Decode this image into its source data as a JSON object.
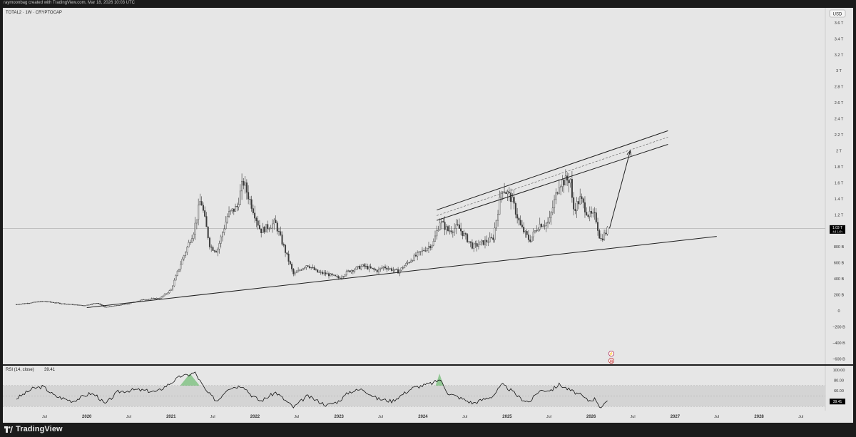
{
  "header": {
    "attribution": "raymoonbag created with TradingView.com, Mar 18, 2026 10:03 UTC"
  },
  "footer": {
    "brand": "TradingView"
  },
  "colors": {
    "background": "#e6e6e6",
    "frame": "#1b1b1b",
    "candle": "#3a3a3a",
    "trendline": "#202020",
    "rsi_line": "#111111",
    "rsi_band": "#d4d4d4",
    "rsi_overbought_fill": "#4caf50",
    "price_tag": "#000000"
  },
  "chart_data": [
    {
      "type": "candlestick",
      "title": "TOTAL2 · 1W · CRYPTOCAP",
      "symbol": "TOTAL2",
      "interval": "1W",
      "exchange": "CRYPTOCAP",
      "currency": "USD",
      "scale": "linear",
      "ylim": [
        -650000000000,
        3750000000000
      ],
      "y_ticks": [
        "3.6 T",
        "3.4 T",
        "3.2 T",
        "3 T",
        "2.8 T",
        "2.6 T",
        "2.4 T",
        "2.2 T",
        "2 T",
        "1.8 T",
        "1.6 T",
        "1.4 T",
        "1.2 T",
        "1 T",
        "800 B",
        "600 B",
        "400 B",
        "200 B",
        "0",
        "−200 B",
        "−400 B",
        "−600 B"
      ],
      "y_tick_values": [
        3600000000000.0,
        3400000000000.0,
        3200000000000.0,
        3000000000000.0,
        2800000000000.0,
        2600000000000.0,
        2400000000000.0,
        2200000000000.0,
        2000000000000.0,
        1800000000000.0,
        1600000000000.0,
        1400000000000.0,
        1200000000000.0,
        1000000000000.0,
        800000000000.0,
        600000000000.0,
        400000000000.0,
        200000000000.0,
        0,
        -200000000000.0,
        -400000000000.0,
        -600000000000.0
      ],
      "x_ticks": [
        "Jul",
        "2020",
        "Jul",
        "2021",
        "Jul",
        "2022",
        "Jul",
        "2023",
        "Jul",
        "2024",
        "Jul",
        "2025",
        "Jul",
        "2026",
        "Jul",
        "2027",
        "Jul",
        "2028",
        "Jul"
      ],
      "x_tick_dates": [
        "2019-07-01",
        "2020-01-01",
        "2020-07-01",
        "2021-01-01",
        "2021-07-01",
        "2022-01-01",
        "2022-07-01",
        "2023-01-01",
        "2023-07-01",
        "2024-01-01",
        "2024-07-01",
        "2025-01-01",
        "2025-07-01",
        "2026-01-01",
        "2026-07-01",
        "2027-01-01",
        "2027-07-01",
        "2028-01-01",
        "2028-07-01"
      ],
      "price_path": [
        [
          "2019-03-01",
          80000000000.0
        ],
        [
          "2019-06-25",
          120000000000.0
        ],
        [
          "2019-09-15",
          90000000000.0
        ],
        [
          "2019-12-20",
          65000000000.0
        ],
        [
          "2020-02-15",
          100000000000.0
        ],
        [
          "2020-03-20",
          45000000000.0
        ],
        [
          "2020-07-01",
          90000000000.0
        ],
        [
          "2020-09-01",
          140000000000.0
        ],
        [
          "2020-11-15",
          160000000000.0
        ],
        [
          "2020-12-31",
          260000000000.0
        ],
        [
          "2021-02-20",
          650000000000.0
        ],
        [
          "2021-04-10",
          1000000000000.0
        ],
        [
          "2021-05-10",
          1400000000000.0
        ],
        [
          "2021-06-20",
          800000000000.0
        ],
        [
          "2021-07-20",
          750000000000.0
        ],
        [
          "2021-09-05",
          1200000000000.0
        ],
        [
          "2021-10-15",
          1300000000000.0
        ],
        [
          "2021-11-10",
          1620000000000.0
        ],
        [
          "2021-12-20",
          1300000000000.0
        ],
        [
          "2022-01-25",
          1000000000000.0
        ],
        [
          "2022-03-30",
          1100000000000.0
        ],
        [
          "2022-05-12",
          750000000000.0
        ],
        [
          "2022-06-18",
          450000000000.0
        ],
        [
          "2022-08-15",
          580000000000.0
        ],
        [
          "2022-10-01",
          480000000000.0
        ],
        [
          "2022-11-10",
          460000000000.0
        ],
        [
          "2022-12-31",
          410000000000.0
        ],
        [
          "2023-02-15",
          500000000000.0
        ],
        [
          "2023-04-15",
          560000000000.0
        ],
        [
          "2023-06-15",
          500000000000.0
        ],
        [
          "2023-07-15",
          550000000000.0
        ],
        [
          "2023-09-15",
          490000000000.0
        ],
        [
          "2023-11-15",
          650000000000.0
        ],
        [
          "2023-12-31",
          750000000000.0
        ],
        [
          "2024-02-15",
          850000000000.0
        ],
        [
          "2024-03-15",
          1120000000000.0
        ],
        [
          "2024-04-20",
          1000000000000.0
        ],
        [
          "2024-06-01",
          1050000000000.0
        ],
        [
          "2024-08-05",
          800000000000.0
        ],
        [
          "2024-09-15",
          850000000000.0
        ],
        [
          "2024-10-31",
          900000000000.0
        ],
        [
          "2024-12-10",
          1550000000000.0
        ],
        [
          "2025-01-20",
          1400000000000.0
        ],
        [
          "2025-03-01",
          1050000000000.0
        ],
        [
          "2025-04-08",
          880000000000.0
        ],
        [
          "2025-05-20",
          1080000000000.0
        ],
        [
          "2025-07-01",
          1100000000000.0
        ],
        [
          "2025-08-15",
          1600000000000.0
        ],
        [
          "2025-10-06",
          1650000000000.0
        ],
        [
          "2025-10-12",
          1250000000000.0
        ],
        [
          "2025-11-15",
          1400000000000.0
        ],
        [
          "2025-12-20",
          1200000000000.0
        ],
        [
          "2026-01-20",
          1180000000000.0
        ],
        [
          "2026-02-10",
          880000000000.0
        ],
        [
          "2026-03-18",
          1030000000000.0
        ]
      ],
      "current_price": {
        "label": "1.03 T",
        "value": 1030000000000.0,
        "countdown": "4d 14h"
      },
      "drawings": [
        {
          "kind": "trend_line",
          "from": [
            "2020-01-01",
            40000000000.0
          ],
          "to": [
            "2027-07-01",
            930000000000.0
          ]
        },
        {
          "kind": "channel_top",
          "from": [
            "2024-03-01",
            1260000000000.0
          ],
          "to": [
            "2026-12-01",
            2250000000000.0
          ]
        },
        {
          "kind": "channel_mid_dashed",
          "from": [
            "2024-03-01",
            1190000000000.0
          ],
          "to": [
            "2026-12-01",
            2170000000000.0
          ]
        },
        {
          "kind": "channel_bottom",
          "from": [
            "2024-03-01",
            1130000000000.0
          ],
          "to": [
            "2026-12-01",
            2080000000000.0
          ]
        },
        {
          "kind": "projection_arrow",
          "from": [
            "2026-03-22",
            1030000000000.0
          ],
          "to": [
            "2026-06-20",
            2000000000000.0
          ]
        }
      ]
    },
    {
      "type": "line",
      "title": "RSI (14, close)",
      "indicator": "RSI",
      "length": 14,
      "source": "close",
      "current_value": 39.41,
      "current_label": "39.41",
      "ylim": [
        22,
        108
      ],
      "y_ticks": [
        "100.00",
        "80.00",
        "60.00"
      ],
      "y_tick_values": [
        100,
        80,
        60
      ],
      "band": [
        30,
        70
      ],
      "rsi_path": [
        [
          "2019-03-01",
          45
        ],
        [
          "2019-05-10",
          64
        ],
        [
          "2019-06-25",
          68
        ],
        [
          "2019-08-15",
          50
        ],
        [
          "2019-11-01",
          40
        ],
        [
          "2020-01-15",
          55
        ],
        [
          "2020-02-15",
          50
        ],
        [
          "2020-03-20",
          34
        ],
        [
          "2020-05-15",
          58
        ],
        [
          "2020-08-01",
          62
        ],
        [
          "2020-11-01",
          58
        ],
        [
          "2020-12-31",
          75
        ],
        [
          "2021-02-20",
          90
        ],
        [
          "2021-03-01",
          88
        ],
        [
          "2021-04-15",
          95
        ],
        [
          "2021-06-01",
          60
        ],
        [
          "2021-07-20",
          40
        ],
        [
          "2021-09-05",
          65
        ],
        [
          "2021-11-10",
          70
        ],
        [
          "2021-12-15",
          52
        ],
        [
          "2022-01-25",
          40
        ],
        [
          "2022-04-01",
          57
        ],
        [
          "2022-06-18",
          28
        ],
        [
          "2022-08-15",
          50
        ],
        [
          "2022-11-10",
          32
        ],
        [
          "2022-12-31",
          40
        ],
        [
          "2023-02-15",
          58
        ],
        [
          "2023-04-15",
          63
        ],
        [
          "2023-06-15",
          45
        ],
        [
          "2023-08-20",
          40
        ],
        [
          "2023-11-15",
          65
        ],
        [
          "2024-02-15",
          75
        ],
        [
          "2024-03-15",
          82
        ],
        [
          "2024-04-20",
          55
        ],
        [
          "2024-06-01",
          48
        ],
        [
          "2024-08-05",
          36
        ],
        [
          "2024-10-31",
          50
        ],
        [
          "2024-12-10",
          72
        ],
        [
          "2025-01-20",
          60
        ],
        [
          "2025-03-01",
          45
        ],
        [
          "2025-04-08",
          38
        ],
        [
          "2025-05-20",
          60
        ],
        [
          "2025-07-15",
          62
        ],
        [
          "2025-08-15",
          72
        ],
        [
          "2025-10-06",
          60
        ],
        [
          "2025-11-15",
          52
        ],
        [
          "2025-12-20",
          41
        ],
        [
          "2026-01-20",
          45
        ],
        [
          "2026-02-10",
          28
        ],
        [
          "2026-03-18",
          39.41
        ]
      ]
    }
  ]
}
